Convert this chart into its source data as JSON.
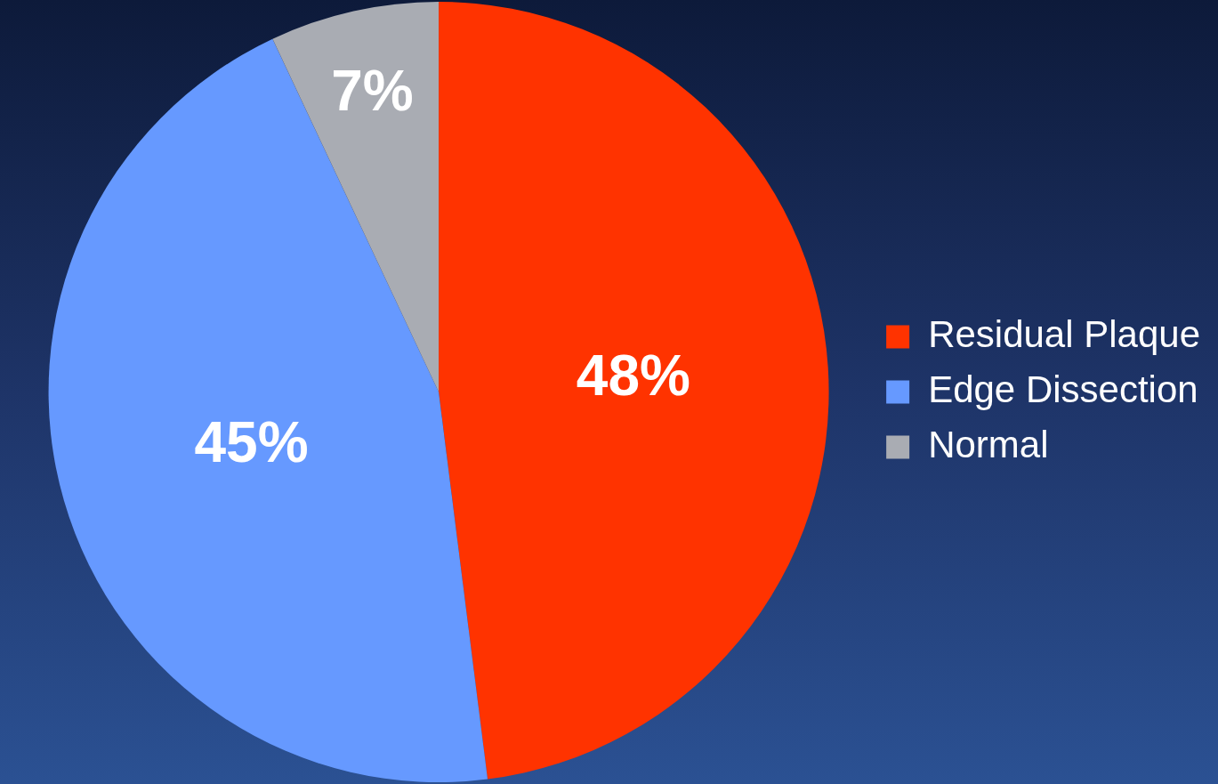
{
  "chart_data": {
    "type": "pie",
    "categories": [
      "Residual Plaque",
      "Edge Dissection",
      "Normal"
    ],
    "values": [
      48,
      45,
      7
    ],
    "colors": [
      "#ff3300",
      "#6699ff",
      "#a9acb3"
    ],
    "value_labels": [
      "48%",
      "45%",
      "7%"
    ],
    "legend": "right"
  }
}
